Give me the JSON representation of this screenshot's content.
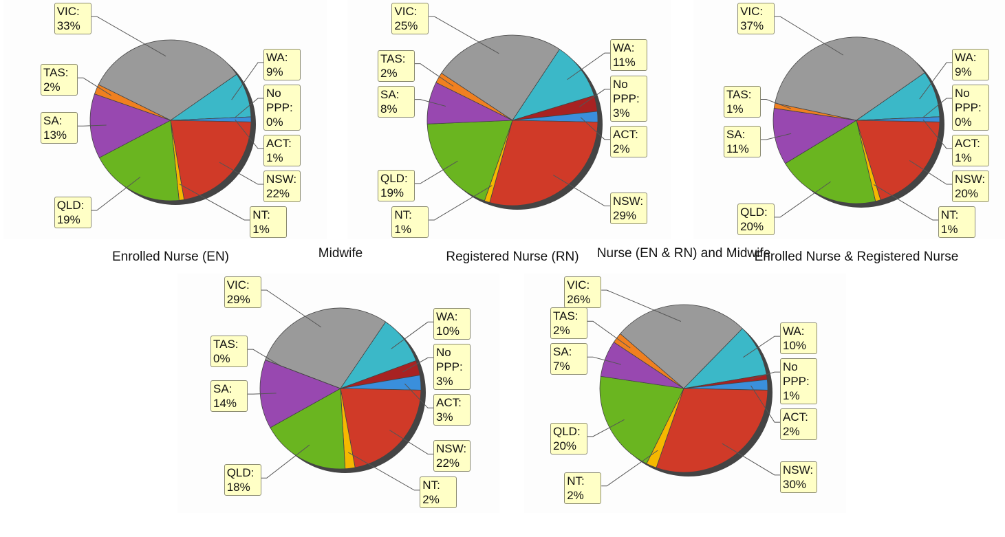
{
  "chart_data": [
    {
      "type": "pie",
      "title": "Enrolled Nurse (EN)",
      "categories": [
        "VIC:",
        "WA:",
        "No PPP:",
        "ACT:",
        "NSW:",
        "NT:",
        "QLD:",
        "SA:",
        "TAS:"
      ],
      "values": [
        33,
        9,
        0,
        1,
        22,
        1,
        19,
        13,
        2
      ],
      "value_labels": [
        "33%",
        "9%",
        "0%",
        "1%",
        "22%",
        "1%",
        "19%",
        "13%",
        "2%"
      ],
      "colors": [
        "#9a9a9a",
        "#3bb8c8",
        "#a82222",
        "#3a8fdc",
        "#d03a28",
        "#f5b800",
        "#6ab520",
        "#9848b0",
        "#f08020"
      ]
    },
    {
      "type": "pie",
      "title": "Registered Nurse (RN)",
      "categories": [
        "VIC:",
        "WA:",
        "No PPP:",
        "ACT:",
        "NSW:",
        "NT:",
        "QLD:",
        "SA:",
        "TAS:"
      ],
      "values": [
        25,
        11,
        3,
        2,
        29,
        1,
        19,
        8,
        2
      ],
      "value_labels": [
        "25%",
        "11%",
        "3%",
        "2%",
        "29%",
        "1%",
        "19%",
        "8%",
        "2%"
      ],
      "colors": [
        "#9a9a9a",
        "#3bb8c8",
        "#a82222",
        "#3a8fdc",
        "#d03a28",
        "#f5b800",
        "#6ab520",
        "#9848b0",
        "#f08020"
      ]
    },
    {
      "type": "pie",
      "title": "Enrolled Nurse & Registered Nurse",
      "categories": [
        "VIC:",
        "WA:",
        "No PPP:",
        "ACT:",
        "NSW:",
        "NT:",
        "QLD:",
        "SA:",
        "TAS:"
      ],
      "values": [
        37,
        9,
        0,
        1,
        20,
        1,
        20,
        11,
        1
      ],
      "value_labels": [
        "37%",
        "9%",
        "0%",
        "1%",
        "20%",
        "1%",
        "20%",
        "11%",
        "1%"
      ],
      "colors": [
        "#9a9a9a",
        "#3bb8c8",
        "#a82222",
        "#3a8fdc",
        "#d03a28",
        "#f5b800",
        "#6ab520",
        "#9848b0",
        "#f08020"
      ]
    },
    {
      "type": "pie",
      "title": "Midwife",
      "categories": [
        "VIC:",
        "WA:",
        "No PPP:",
        "ACT:",
        "NSW:",
        "NT:",
        "QLD:",
        "SA:",
        "TAS:"
      ],
      "values": [
        29,
        10,
        3,
        3,
        22,
        2,
        18,
        14,
        0
      ],
      "value_labels": [
        "29%",
        "10%",
        "3%",
        "3%",
        "22%",
        "2%",
        "18%",
        "14%",
        "0%"
      ],
      "colors": [
        "#9a9a9a",
        "#3bb8c8",
        "#a82222",
        "#3a8fdc",
        "#d03a28",
        "#f5b800",
        "#6ab520",
        "#9848b0",
        "#f08020"
      ]
    },
    {
      "type": "pie",
      "title": "Nurse (EN & RN) and Midwife",
      "categories": [
        "VIC:",
        "WA:",
        "No PPP:",
        "ACT:",
        "NSW:",
        "NT:",
        "QLD:",
        "SA:",
        "TAS:"
      ],
      "values": [
        26,
        10,
        1,
        2,
        30,
        2,
        20,
        7,
        2
      ],
      "value_labels": [
        "26%",
        "10%",
        "1%",
        "2%",
        "30%",
        "2%",
        "20%",
        "7%",
        "2%"
      ],
      "colors": [
        "#9a9a9a",
        "#3bb8c8",
        "#a82222",
        "#3a8fdc",
        "#d03a28",
        "#f5b800",
        "#6ab520",
        "#9848b0",
        "#f08020"
      ]
    }
  ]
}
